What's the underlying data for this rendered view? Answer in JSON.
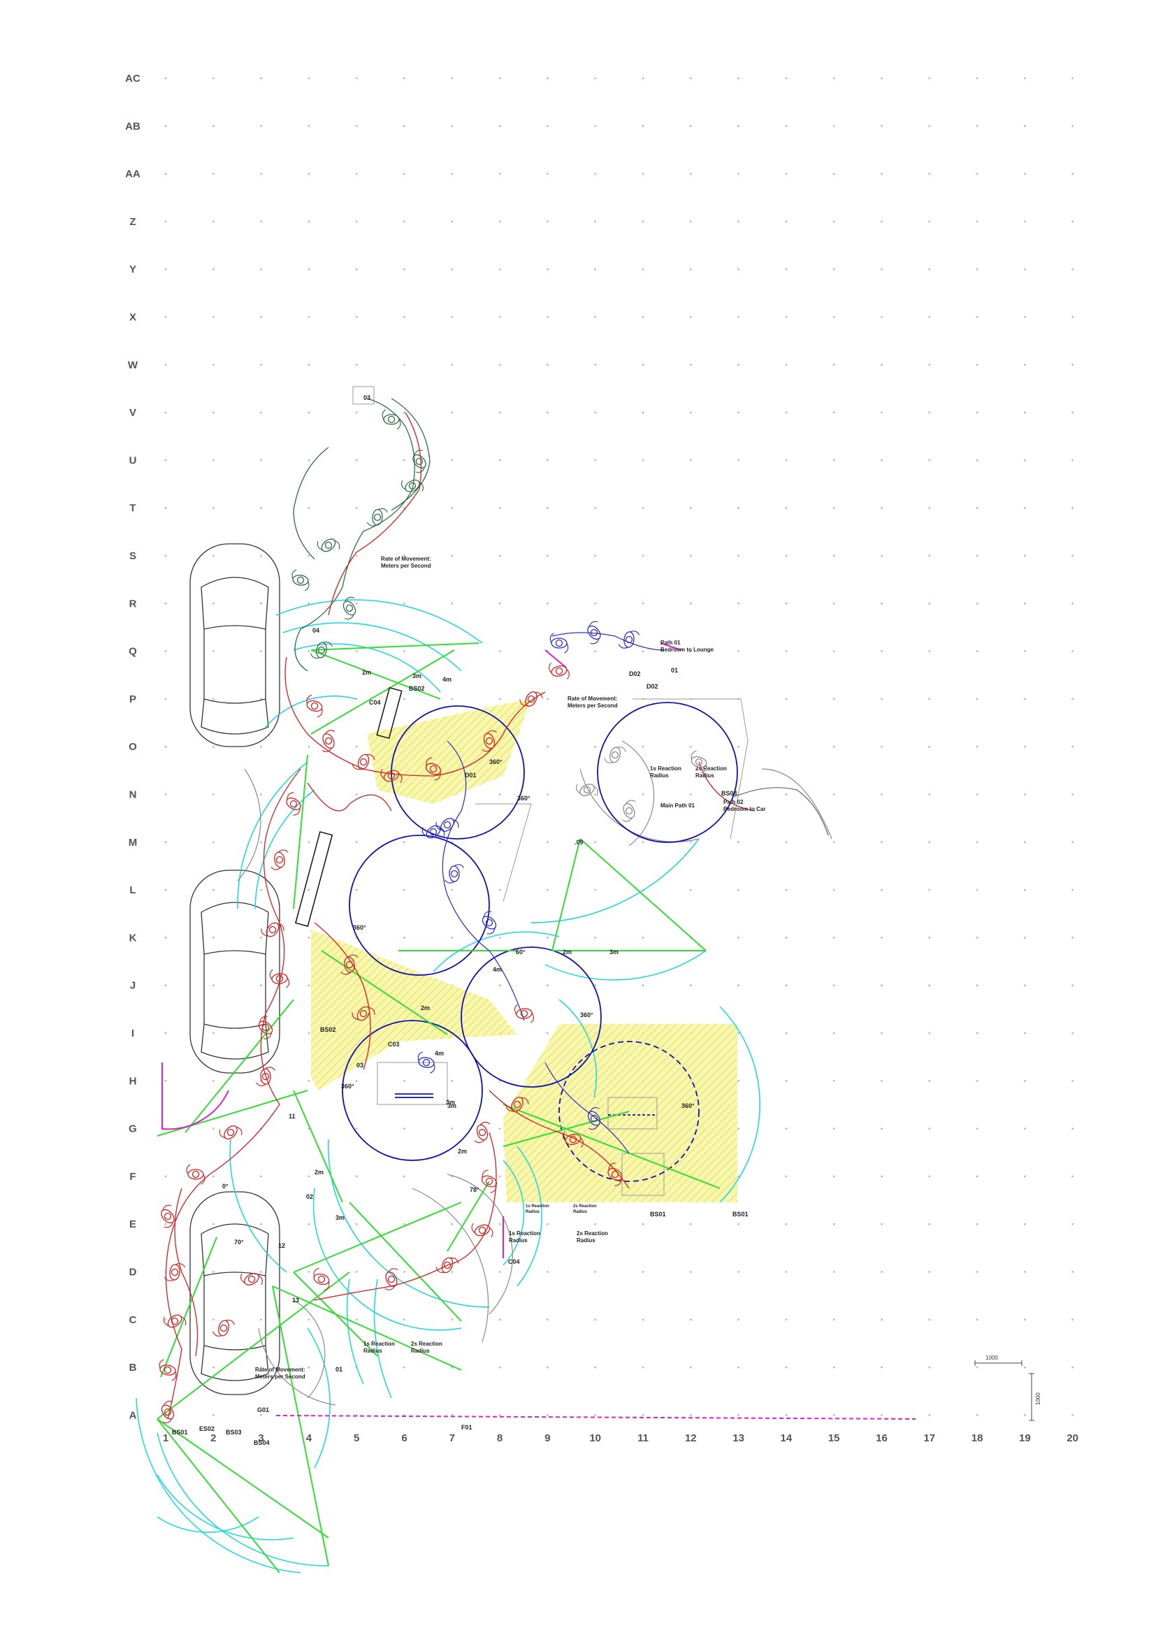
{
  "grid": {
    "rows": [
      "A",
      "B",
      "C",
      "D",
      "E",
      "F",
      "G",
      "H",
      "I",
      "J",
      "K",
      "L",
      "M",
      "N",
      "O",
      "P",
      "Q",
      "R",
      "S",
      "T",
      "U",
      "V",
      "W",
      "X",
      "Y",
      "Z",
      "AA",
      "AB",
      "AC"
    ],
    "columns": [
      "1",
      "2",
      "3",
      "4",
      "5",
      "6",
      "7",
      "8",
      "9",
      "10",
      "11",
      "12",
      "13",
      "14",
      "15",
      "16",
      "17",
      "18",
      "19",
      "20"
    ]
  },
  "scale": {
    "horizontal": "1000",
    "vertical": "1000"
  },
  "colors": {
    "grid_dot": "#b9b9b9",
    "path_red": "#d61f1f",
    "path_blue": "#2a2ad0",
    "path_green": "#2d6b45",
    "cyan": "#19d7de",
    "green": "#33dd33",
    "navy": "#1010b0",
    "grey": "#8a8a8a",
    "magenta": "#e020d0",
    "yellow": "#f2f26a",
    "car": "#333333",
    "stroke_purple": "#6a2aa0"
  },
  "annotations": {
    "rate_v_1": "Rate of Movement:",
    "rate_v_2": "Meters per Second",
    "rate_p_1": "Rate of Movement:",
    "rate_p_2": "Meters per Second",
    "rate_b_1": "Rate of Movement:",
    "rate_b_2": "Meters per Second",
    "path_q_1": "Path 01",
    "path_q_2": "Bedroom to Lounge",
    "path_n_1": "Path 02",
    "path_n_2": "Bedroom to Car",
    "main_path": "Main Path 01",
    "reaction_1s_o": "1s Reaction",
    "reaction_1s_o_2": "Radius",
    "reaction_2s_o": "2s Reaction",
    "reaction_2s_o_2": "Radius",
    "reaction_1s_e": "1s Reaction",
    "reaction_1s_e_2": "Radius",
    "reaction_2s_e": "2s Reaction",
    "reaction_2s_e_2": "Radius",
    "reaction_1s_c": "1s Reaction",
    "reaction_1s_c_2": "Radius",
    "reaction_2s_c": "2s Reaction",
    "reaction_2s_c_2": "Radius",
    "reaction_1s_f": "1s Reaction",
    "reaction_1s_f_2": "Radius",
    "reaction_2s_f": "2s Reaction",
    "reaction_2s_f_2": "Radius"
  },
  "tags": {
    "d03": "03",
    "d02": "D02",
    "d02b": "D02",
    "d01": "01",
    "b502": "BS02",
    "c04_top": "C04",
    "d01b": "D01",
    "d09": ".09",
    "bs03": "BS03",
    "bs01a": "BS01",
    "bs01b": "BS01",
    "c04_mid": "C04",
    "bs02_low": "BS02",
    "c03": "C03",
    "r03": "03",
    "o2": "02",
    "n11": "11",
    "n12": "12",
    "n13": "13",
    "o1": "01",
    "g01": "G01",
    "bs01_low": "BS01",
    "es02": "ES02",
    "bs03b": "BS03",
    "bs04": "BS04",
    "f01": "F01",
    "o4": "04",
    "deg360a": "360°",
    "deg360b": "360°",
    "deg360c": "360°",
    "deg360d": "360°",
    "deg360e": "360°",
    "deg360f": "360°",
    "deg60": "60°",
    "deg78": "78°",
    "deg70": "70°",
    "deg0": "0°",
    "m2a": "2m",
    "m3a": "3m",
    "m4a": "4m",
    "m2b": "2m",
    "m3b": "3m",
    "m4b": "4m",
    "m2c": "2m",
    "m3c": "3m",
    "m4c": "4m",
    "m2d": "2m",
    "m3d": "3m",
    "m2e": "2m",
    "m3e": "3m"
  }
}
